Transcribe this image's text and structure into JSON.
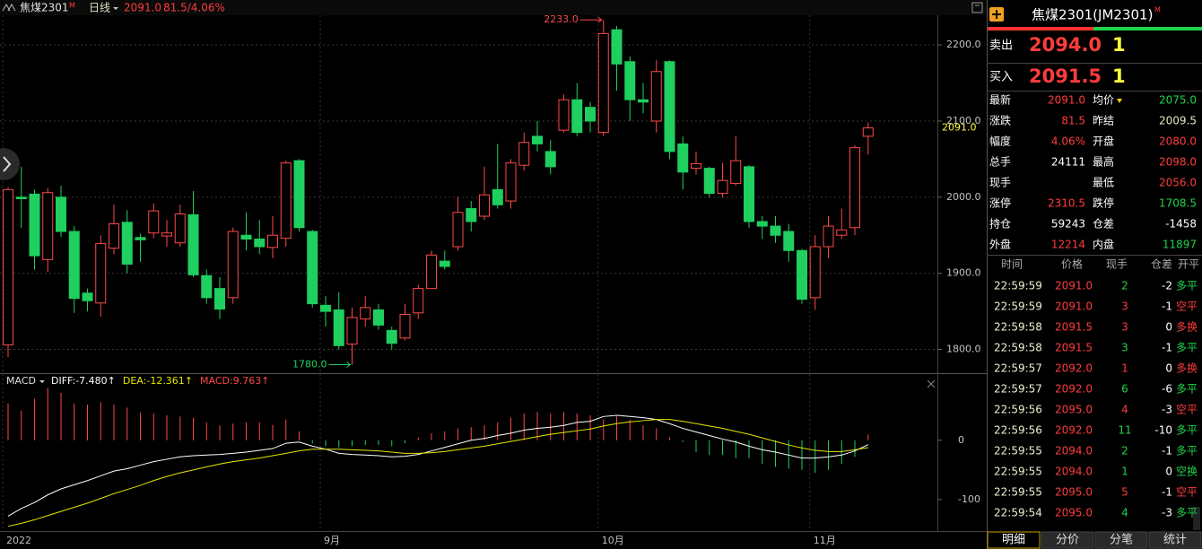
{
  "header": {
    "symbol": "焦煤2301",
    "badge": "M",
    "period": "日线",
    "price": "2091.0",
    "change": "81.5/4.06%"
  },
  "chart_data": [
    {
      "type": "candlestick",
      "up_color": "#ff4848",
      "down_color": "#1fcf5f",
      "ylim": [
        1770,
        2239
      ],
      "yticks": [
        {
          "value": 1800,
          "label": "1800.0"
        },
        {
          "value": 1900,
          "label": "1900.0"
        },
        {
          "value": 2000,
          "label": "2000.0"
        },
        {
          "value": 2100,
          "label": "2100.0"
        },
        {
          "value": 2200,
          "label": "2200.0"
        }
      ],
      "grid": true,
      "x_labels": [
        {
          "value": 0,
          "label": "2022"
        },
        {
          "value": 24,
          "label": "9月"
        },
        {
          "value": 45,
          "label": "10月"
        },
        {
          "value": 61,
          "label": "11月"
        }
      ],
      "open": [
        1806,
        2000,
        2004,
        1918,
        2000,
        1955,
        1874,
        1861,
        1933,
        1967,
        1947,
        1953,
        1949,
        1940,
        1977,
        1897,
        1880,
        1868,
        1950,
        1945,
        1934,
        1946,
        2048,
        1955,
        1858,
        1852,
        1807,
        1840,
        1852,
        1825,
        1815,
        1848,
        1880,
        1916,
        1935,
        1985,
        1975,
        2010,
        1995,
        2042,
        2080,
        2060,
        2088,
        2128,
        2118,
        2085,
        2220,
        2178,
        2128,
        2100,
        2178,
        2070,
        2038,
        2038,
        2005,
        2018,
        2040,
        1968,
        1962,
        1955,
        1930,
        1868,
        1935,
        1950,
        1960,
        2080
      ],
      "high": [
        2013,
        2040,
        2010,
        2012,
        2015,
        1962,
        1880,
        1950,
        1990,
        1983,
        1952,
        1992,
        1970,
        1990,
        2008,
        1905,
        1895,
        1960,
        1980,
        1970,
        1975,
        2048,
        2050,
        1957,
        1870,
        1875,
        1855,
        1870,
        1860,
        1830,
        1860,
        1885,
        1930,
        1930,
        2000,
        1995,
        2040,
        2070,
        2050,
        2085,
        2100,
        2075,
        2135,
        2150,
        2125,
        2233,
        2225,
        2185,
        2150,
        2180,
        2180,
        2080,
        2060,
        2040,
        2045,
        2080,
        2042,
        1975,
        1975,
        1965,
        1932,
        1950,
        1975,
        1985,
        2068,
        2098
      ],
      "low": [
        1790,
        1960,
        1905,
        1902,
        1948,
        1848,
        1850,
        1843,
        1925,
        1900,
        1915,
        1946,
        1935,
        1935,
        1895,
        1860,
        1840,
        1860,
        1930,
        1925,
        1920,
        1935,
        1955,
        1855,
        1830,
        1800,
        1780,
        1830,
        1826,
        1800,
        1812,
        1840,
        1880,
        1905,
        1930,
        1955,
        1970,
        1985,
        1985,
        2035,
        2060,
        2030,
        2085,
        2080,
        2085,
        2080,
        2140,
        2100,
        2110,
        2085,
        2050,
        2010,
        2030,
        2000,
        2000,
        2015,
        1960,
        1945,
        1940,
        1915,
        1860,
        1852,
        1920,
        1945,
        1950,
        2056
      ],
      "close": [
        2010,
        1998,
        1923,
        2006,
        1955,
        1867,
        1864,
        1939,
        1965,
        1912,
        1944,
        1982,
        1953,
        1978,
        1898,
        1868,
        1853,
        1955,
        1945,
        1935,
        1950,
        2045,
        1960,
        1860,
        1850,
        1805,
        1842,
        1855,
        1832,
        1808,
        1846,
        1880,
        1924,
        1909,
        1980,
        1968,
        2003,
        1990,
        2045,
        2072,
        2070,
        2040,
        2128,
        2085,
        2100,
        2215,
        2175,
        2128,
        2125,
        2165,
        2060,
        2033,
        2044,
        2005,
        2022,
        2048,
        1968,
        1962,
        1950,
        1930,
        1866,
        1935,
        1962,
        1957,
        2065,
        2091
      ],
      "annotations": [
        {
          "index": 45,
          "value": 2233,
          "label": "2233.0",
          "color": "#ff4848"
        },
        {
          "index": 26,
          "value": 1780,
          "label": "1780.0",
          "color": "#1fcf5f"
        }
      ],
      "last_price": {
        "value": 2091,
        "label": "2091.0",
        "color": "#ffff40"
      }
    },
    {
      "type": "macd",
      "title": "MACD",
      "ylim": [
        -150,
        110
      ],
      "yticks": [
        0,
        -100
      ],
      "histogram": {
        "name": "MACD:9.763↑",
        "up_color": "#ff4848",
        "down_color": "#1fcf5f",
        "values": [
          62,
          50,
          70,
          88,
          80,
          62,
          60,
          64,
          60,
          55,
          47,
          45,
          42,
          40,
          38,
          30,
          25,
          28,
          30,
          30,
          26,
          35,
          15,
          -5,
          -10,
          -12,
          -10,
          -8,
          -8,
          -10,
          -5,
          5,
          12,
          15,
          20,
          22,
          25,
          30,
          38,
          45,
          48,
          45,
          48,
          45,
          42,
          35,
          40,
          35,
          25,
          20,
          5,
          -3,
          -20,
          -25,
          -25,
          -30,
          -30,
          -40,
          -45,
          -48,
          -50,
          -55,
          -50,
          -40,
          -28,
          9.763
        ]
      },
      "series": [
        {
          "name": "DIFF:-7.480↑",
          "color": "#ffffff",
          "values": [
            -128,
            -115,
            -105,
            -92,
            -82,
            -75,
            -68,
            -60,
            -52,
            -48,
            -42,
            -36,
            -32,
            -28,
            -26,
            -25,
            -24,
            -22,
            -20,
            -17,
            -14,
            -5,
            -3,
            -10,
            -15,
            -22,
            -24,
            -25,
            -26,
            -28,
            -27,
            -24,
            -18,
            -12,
            -6,
            0,
            3,
            8,
            12,
            17,
            20,
            22,
            25,
            30,
            32,
            40,
            42,
            40,
            38,
            35,
            28,
            20,
            14,
            8,
            2,
            -3,
            -10,
            -16,
            -20,
            -25,
            -30,
            -30,
            -28,
            -25,
            -18,
            -7.48
          ]
        },
        {
          "name": "DEA:-12.361↑",
          "color": "#e6e600",
          "values": [
            -145,
            -140,
            -134,
            -127,
            -120,
            -113,
            -106,
            -98,
            -90,
            -83,
            -76,
            -68,
            -61,
            -55,
            -50,
            -45,
            -40,
            -36,
            -33,
            -30,
            -26,
            -22,
            -18,
            -15,
            -15,
            -15,
            -16,
            -17,
            -18,
            -20,
            -22,
            -22,
            -21,
            -19,
            -16,
            -13,
            -10,
            -6,
            -2,
            2,
            6,
            10,
            13,
            16,
            19,
            24,
            28,
            31,
            33,
            35,
            35,
            32,
            28,
            24,
            20,
            15,
            10,
            4,
            -2,
            -8,
            -13,
            -17,
            -19,
            -19,
            -16,
            -12.361
          ]
        }
      ]
    }
  ],
  "quote": {
    "title": "焦煤2301(JM2301)",
    "badge": "M",
    "ask": {
      "label": "卖出",
      "price": "2094.0",
      "qty": "1"
    },
    "bid": {
      "label": "买入",
      "price": "2091.5",
      "qty": "1"
    },
    "fields": [
      {
        "label": "最新",
        "value": "2091.0",
        "color": "#ff3c3c"
      },
      {
        "label": "均价",
        "value": "2075.0",
        "color": "#1fd34a",
        "dropdown": true
      },
      {
        "label": "涨跌",
        "value": "81.5",
        "color": "#ff3c3c"
      },
      {
        "label": "昨结",
        "value": "2009.5",
        "color": "#e8e8c0"
      },
      {
        "label": "幅度",
        "value": "4.06%",
        "color": "#ff3c3c"
      },
      {
        "label": "开盘",
        "value": "2080.0",
        "color": "#ff3c3c"
      },
      {
        "label": "总手",
        "value": "24111",
        "color": "#ffffff"
      },
      {
        "label": "最高",
        "value": "2098.0",
        "color": "#ff3c3c"
      },
      {
        "label": "现手"
      },
      {
        "label": "最低",
        "value": "2056.0",
        "color": "#ff3c3c"
      },
      {
        "label": "涨停",
        "value": "2310.5",
        "color": "#ff3c3c"
      },
      {
        "label": "跌停",
        "value": "1708.5",
        "color": "#1fd34a"
      },
      {
        "label": "持仓",
        "value": "59243",
        "color": "#ffffff"
      },
      {
        "label": "仓差",
        "value": "-1458",
        "color": "#ffffff"
      },
      {
        "label": "外盘",
        "value": "12214",
        "color": "#ff3c3c"
      },
      {
        "label": "内盘",
        "value": "11897",
        "color": "#1fd34a"
      }
    ]
  },
  "trades": {
    "columns": [
      "时间",
      "价格",
      "现手",
      "仓差",
      "开平"
    ],
    "rows": [
      {
        "time": "22:59:59",
        "price": "2091.0",
        "volume": "2",
        "oi": "-2",
        "kind": "多平",
        "color": "#1fd34a"
      },
      {
        "time": "22:59:59",
        "price": "2091.0",
        "volume": "3",
        "oi": "-1",
        "kind": "空平",
        "color": "#ff3c3c"
      },
      {
        "time": "22:59:58",
        "price": "2091.5",
        "volume": "3",
        "oi": "0",
        "kind": "多换",
        "color": "#ff3c3c"
      },
      {
        "time": "22:59:58",
        "price": "2091.5",
        "volume": "3",
        "oi": "-1",
        "kind": "多平",
        "color": "#1fd34a"
      },
      {
        "time": "22:59:57",
        "price": "2092.0",
        "volume": "1",
        "oi": "0",
        "kind": "多换",
        "color": "#ff3c3c"
      },
      {
        "time": "22:59:57",
        "price": "2092.0",
        "volume": "6",
        "oi": "-6",
        "kind": "多平",
        "color": "#1fd34a"
      },
      {
        "time": "22:59:56",
        "price": "2095.0",
        "volume": "4",
        "oi": "-3",
        "kind": "空平",
        "color": "#ff3c3c"
      },
      {
        "time": "22:59:56",
        "price": "2092.0",
        "volume": "11",
        "oi": "-10",
        "kind": "多平",
        "color": "#1fd34a"
      },
      {
        "time": "22:59:55",
        "price": "2094.0",
        "volume": "2",
        "oi": "-1",
        "kind": "多平",
        "color": "#1fd34a"
      },
      {
        "time": "22:59:55",
        "price": "2094.0",
        "volume": "1",
        "oi": "0",
        "kind": "空换",
        "color": "#1fd34a"
      },
      {
        "time": "22:59:55",
        "price": "2095.0",
        "volume": "5",
        "oi": "-1",
        "kind": "空平",
        "color": "#ff3c3c"
      },
      {
        "time": "22:59:54",
        "price": "2095.0",
        "volume": "4",
        "oi": "-3",
        "kind": "多平",
        "color": "#1fd34a"
      }
    ]
  },
  "tabs": [
    "明细",
    "分价",
    "分笔",
    "统计"
  ]
}
